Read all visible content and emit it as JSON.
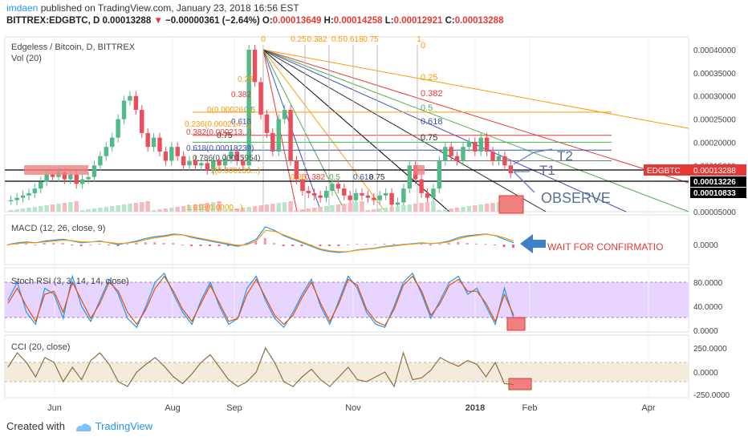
{
  "header": {
    "author": "imdaen",
    "published_text": " published on TradingView.com, January 23, 2018 16:56 EST",
    "symbol_line": "BITTREX:EDGBTC, D  0.00013288",
    "change": "−0.00000361 (−2.64%)",
    "ohlc": {
      "o_label": "O:",
      "o": "0.00013649",
      "h_label": "H:",
      "h": "0.00014258",
      "l_label": "L:",
      "l": "0.00012921",
      "c_label": "C:",
      "c": "0.00013288"
    }
  },
  "footer": {
    "created_with": "Created with",
    "brand": "TradingView"
  },
  "colors": {
    "up": "#53b987",
    "down": "#eb4d5c",
    "accent": "#2196f3",
    "macd": "#2196f3",
    "signal": "#ff9800"
  },
  "chart_data": [
    {
      "panel": "price",
      "type": "candlestick",
      "title": "Edgeless / Bitcoin, D, BITTREX",
      "subtitle": "Vol (20)",
      "price_axis_ticks": [
        "0.00040000",
        "0.00035000",
        "0.00030000",
        "0.00025000",
        "0.00020000",
        "0.00015000",
        "0.00005000"
      ],
      "price_labels": {
        "current": "EDGBTC",
        "current_value": "0.00013288",
        "level_1": "0.00013226",
        "level_2": "0.00010833"
      },
      "x_ticks": [
        "Jun",
        "Aug",
        "Sep",
        "Nov",
        "2018",
        "Feb",
        "Apr"
      ],
      "annotations": {
        "t1": "T1",
        "t2": "T2",
        "observe": "OBSERVE",
        "wait": "WAIT FOR CONFIRMATIO"
      },
      "fib_top_labels": [
        "0",
        "0.25",
        "0.382",
        "0.5",
        "0.618",
        "0.75",
        "1"
      ],
      "fib_right_labels": [
        "0",
        "0.25",
        "0.382",
        "0.5",
        "0.618",
        "0.75"
      ],
      "fib_left_labels": [
        "0.25",
        "0.382",
        "0.5",
        "0.618",
        "0.75",
        "0.786(0.00015954)",
        "0(0.00026...)",
        "0.236(0.000214...)",
        "0.382(0.000213...)",
        "0.618(0.00018239)",
        "1(0.000133...)",
        "1.618(0.0000...)"
      ],
      "fib_bottom_labels": [
        "0.25",
        "0.382",
        "0.5",
        "0.618",
        "0.75"
      ],
      "series": [
        {
          "name": "close",
          "values": [
            7.5e-05,
            8e-05,
            8.5e-05,
            9e-05,
            0.0001,
            0.000115,
            0.00013,
            0.000125,
            0.000135,
            0.00012,
            0.00013,
            0.00011,
            0.00012,
            0.000125,
            0.00015,
            0.00017,
            0.00019,
            0.00021,
            0.00025,
            0.00029,
            0.0003,
            0.00027,
            0.00022,
            0.00019,
            0.00021,
            0.00018,
            0.00016,
            0.00019,
            0.00017,
            0.00015,
            0.00016,
            0.00015,
            0.000155,
            0.00014,
            0.00016,
            0.00015,
            0.000165,
            0.00018,
            0.00016,
            0.00015,
            0.0004,
            0.00033,
            0.00026,
            0.00022,
            0.00018,
            0.00025,
            0.00027,
            0.00016,
            0.00012,
            9.5e-05,
            9e-05,
            8.5e-05,
            8e-05,
            9.5e-05,
            0.00011,
            0.0001,
            8.5e-05,
            7.5e-05,
            9e-05,
            8.5e-05,
            8e-05,
            7.5e-05,
            8.5e-05,
            9e-05,
            6.5e-05,
            7e-05,
            0.0001,
            0.00015,
            0.00012,
            9e-05,
            8e-05,
            0.0001,
            0.00016,
            0.00019,
            0.00017,
            0.00016,
            0.00019,
            0.0002,
            0.00018,
            0.00021,
            0.00018,
            0.00016,
            0.00017,
            0.00015,
            0.000133
          ]
        }
      ]
    },
    {
      "panel": "macd",
      "type": "line",
      "title": "MACD (12, 26, close, 9)",
      "axis_ticks": [
        "0.0000"
      ],
      "series": [
        {
          "name": "",
          "values": [
            0,
            0.1,
            0.15,
            0.1,
            0.2,
            0.25,
            0.3,
            0.2,
            0.1,
            0.15,
            0.2,
            0.1,
            0,
            0.1,
            0.2,
            0.35,
            0.45,
            0.5,
            0.6,
            0.55,
            0.4,
            0.3,
            0.2,
            0.1,
            0,
            -0.1,
            0.05,
            0.3,
            1,
            0.8,
            0.5,
            0.3,
            0.1,
            -0.1,
            -0.3,
            -0.4,
            -0.45,
            -0.4,
            -0.3,
            -0.25,
            -0.2,
            -0.1,
            -0.05,
            0,
            0.05,
            0.1,
            0.05,
            0.1,
            0.2,
            0.4,
            0.5,
            0.55,
            0.6,
            0.5,
            0.3,
            0.1
          ]
        },
        {
          "name": "",
          "values": [
            0,
            0.05,
            0.1,
            0.1,
            0.15,
            0.2,
            0.25,
            0.22,
            0.15,
            0.15,
            0.17,
            0.12,
            0.05,
            0.08,
            0.15,
            0.28,
            0.38,
            0.45,
            0.55,
            0.55,
            0.45,
            0.35,
            0.25,
            0.15,
            0.05,
            -0.05,
            0,
            0.2,
            0.8,
            0.75,
            0.55,
            0.35,
            0.15,
            -0.05,
            -0.25,
            -0.35,
            -0.4,
            -0.4,
            -0.32,
            -0.27,
            -0.22,
            -0.13,
            -0.08,
            -0.02,
            0.03,
            0.07,
            0.06,
            0.08,
            0.15,
            0.32,
            0.45,
            0.52,
            0.58,
            0.52,
            0.38,
            0.2
          ]
        }
      ]
    },
    {
      "panel": "stoch_rsi",
      "type": "line",
      "title": "Stoch RSI (3, 3, 14, 14, close)",
      "axis_ticks": [
        "80.0000",
        "40.0000",
        "0.0000"
      ],
      "ylim": [
        0,
        100
      ],
      "series": [
        {
          "name": "",
          "values": [
            50,
            80,
            30,
            10,
            70,
            60,
            20,
            90,
            40,
            15,
            50,
            85,
            60,
            20,
            5,
            40,
            80,
            95,
            60,
            30,
            10,
            50,
            80,
            40,
            10,
            20,
            70,
            90,
            50,
            20,
            5,
            30,
            60,
            85,
            40,
            10,
            50,
            90,
            70,
            30,
            10,
            5,
            40,
            80,
            95,
            60,
            20,
            50,
            80,
            90,
            60,
            70,
            40,
            10,
            70,
            20
          ]
        },
        {
          "name": "",
          "values": [
            45,
            70,
            40,
            15,
            60,
            65,
            30,
            80,
            50,
            20,
            45,
            80,
            65,
            30,
            10,
            35,
            70,
            90,
            65,
            35,
            15,
            45,
            75,
            45,
            15,
            20,
            60,
            85,
            55,
            25,
            10,
            25,
            55,
            80,
            45,
            15,
            45,
            85,
            75,
            35,
            15,
            8,
            35,
            75,
            90,
            65,
            25,
            45,
            75,
            85,
            65,
            65,
            45,
            15,
            60,
            25
          ]
        }
      ]
    },
    {
      "panel": "cci",
      "type": "line",
      "title": "CCI (20, close)",
      "axis_ticks": [
        "250.0000",
        "0.0000",
        "-250.0000"
      ],
      "ylim": [
        -300,
        300
      ],
      "series": [
        {
          "name": "",
          "values": [
            50,
            200,
            100,
            -50,
            150,
            100,
            -100,
            50,
            -80,
            120,
            200,
            80,
            -100,
            -150,
            0,
            80,
            150,
            60,
            -50,
            -120,
            -20,
            100,
            180,
            50,
            -80,
            -150,
            -100,
            0,
            250,
            100,
            -100,
            -150,
            -50,
            30,
            -80,
            -150,
            -50,
            50,
            -80,
            -100,
            -50,
            0,
            -150,
            200,
            -80,
            -60,
            20,
            150,
            100,
            60,
            120,
            80,
            -50,
            100,
            -120,
            -130
          ]
        }
      ]
    }
  ]
}
